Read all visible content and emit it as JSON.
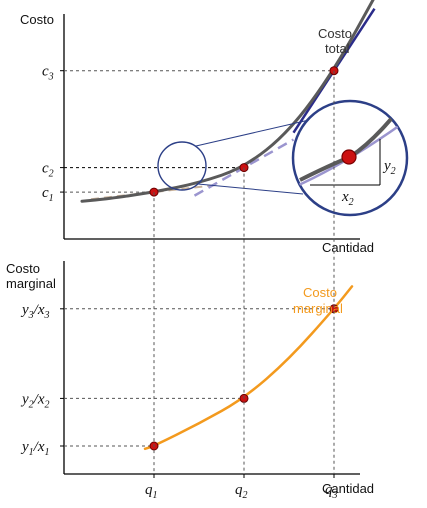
{
  "chart_data": [
    {
      "type": "line",
      "ylabel": "Costo",
      "xlabel": "Cantidad",
      "series": [
        {
          "name": "Costo total",
          "points": [
            [
              0.2,
              0.87
            ],
            [
              0.5,
              0.895
            ],
            [
              1,
              0.96
            ],
            [
              1.5,
              1.05
            ],
            [
              2,
              1.2
            ],
            [
              2.5,
              1.55
            ],
            [
              3,
              2.15
            ],
            [
              3.5,
              2.95
            ]
          ]
        }
      ],
      "y_ticks": [
        {
          "main": "c",
          "sub": "1"
        },
        {
          "main": "c",
          "sub": "2"
        },
        {
          "main": "c",
          "sub": "3"
        }
      ],
      "marked_points": [
        {
          "x": 1,
          "y": 0.96
        },
        {
          "x": 2,
          "y": 1.2
        },
        {
          "x": 3,
          "y": 2.15
        }
      ],
      "inset": {
        "rise_label": {
          "main": "y",
          "sub": "2"
        },
        "run_label": {
          "main": "x",
          "sub": "2"
        }
      },
      "colors": {
        "curve": "#5a5a5a",
        "tangent": "#9b95cf",
        "tangent_dark": "#2b2c8a",
        "point": "#cc1111",
        "inset_border": "#2c3f87"
      }
    },
    {
      "type": "line",
      "ylabel": "Costo marginal",
      "xlabel": "Cantidad",
      "series": [
        {
          "name": "Costo marginal",
          "points": [
            [
              0.9,
              0.95
            ],
            [
              1,
              1
            ],
            [
              1.5,
              1.4
            ],
            [
              2,
              1.85
            ],
            [
              2.5,
              2.55
            ],
            [
              3,
              3.45
            ],
            [
              3.2,
              3.85
            ]
          ]
        }
      ],
      "y_ticks": [
        {
          "num": "y",
          "num_sub": "1",
          "den": "x",
          "den_sub": "1"
        },
        {
          "num": "y",
          "num_sub": "2",
          "den": "x",
          "den_sub": "2"
        },
        {
          "num": "y",
          "num_sub": "3",
          "den": "x",
          "den_sub": "3"
        }
      ],
      "x_ticks": [
        {
          "main": "q",
          "sub": "1"
        },
        {
          "main": "q",
          "sub": "2"
        },
        {
          "main": "q",
          "sub": "3"
        }
      ],
      "marked_points": [
        {
          "x": 1,
          "y": 1
        },
        {
          "x": 2,
          "y": 1.85
        },
        {
          "x": 3,
          "y": 3.45
        }
      ],
      "colors": {
        "curve": "#f39a1e",
        "point": "#cc1111",
        "label": "#f39a1e"
      }
    }
  ]
}
